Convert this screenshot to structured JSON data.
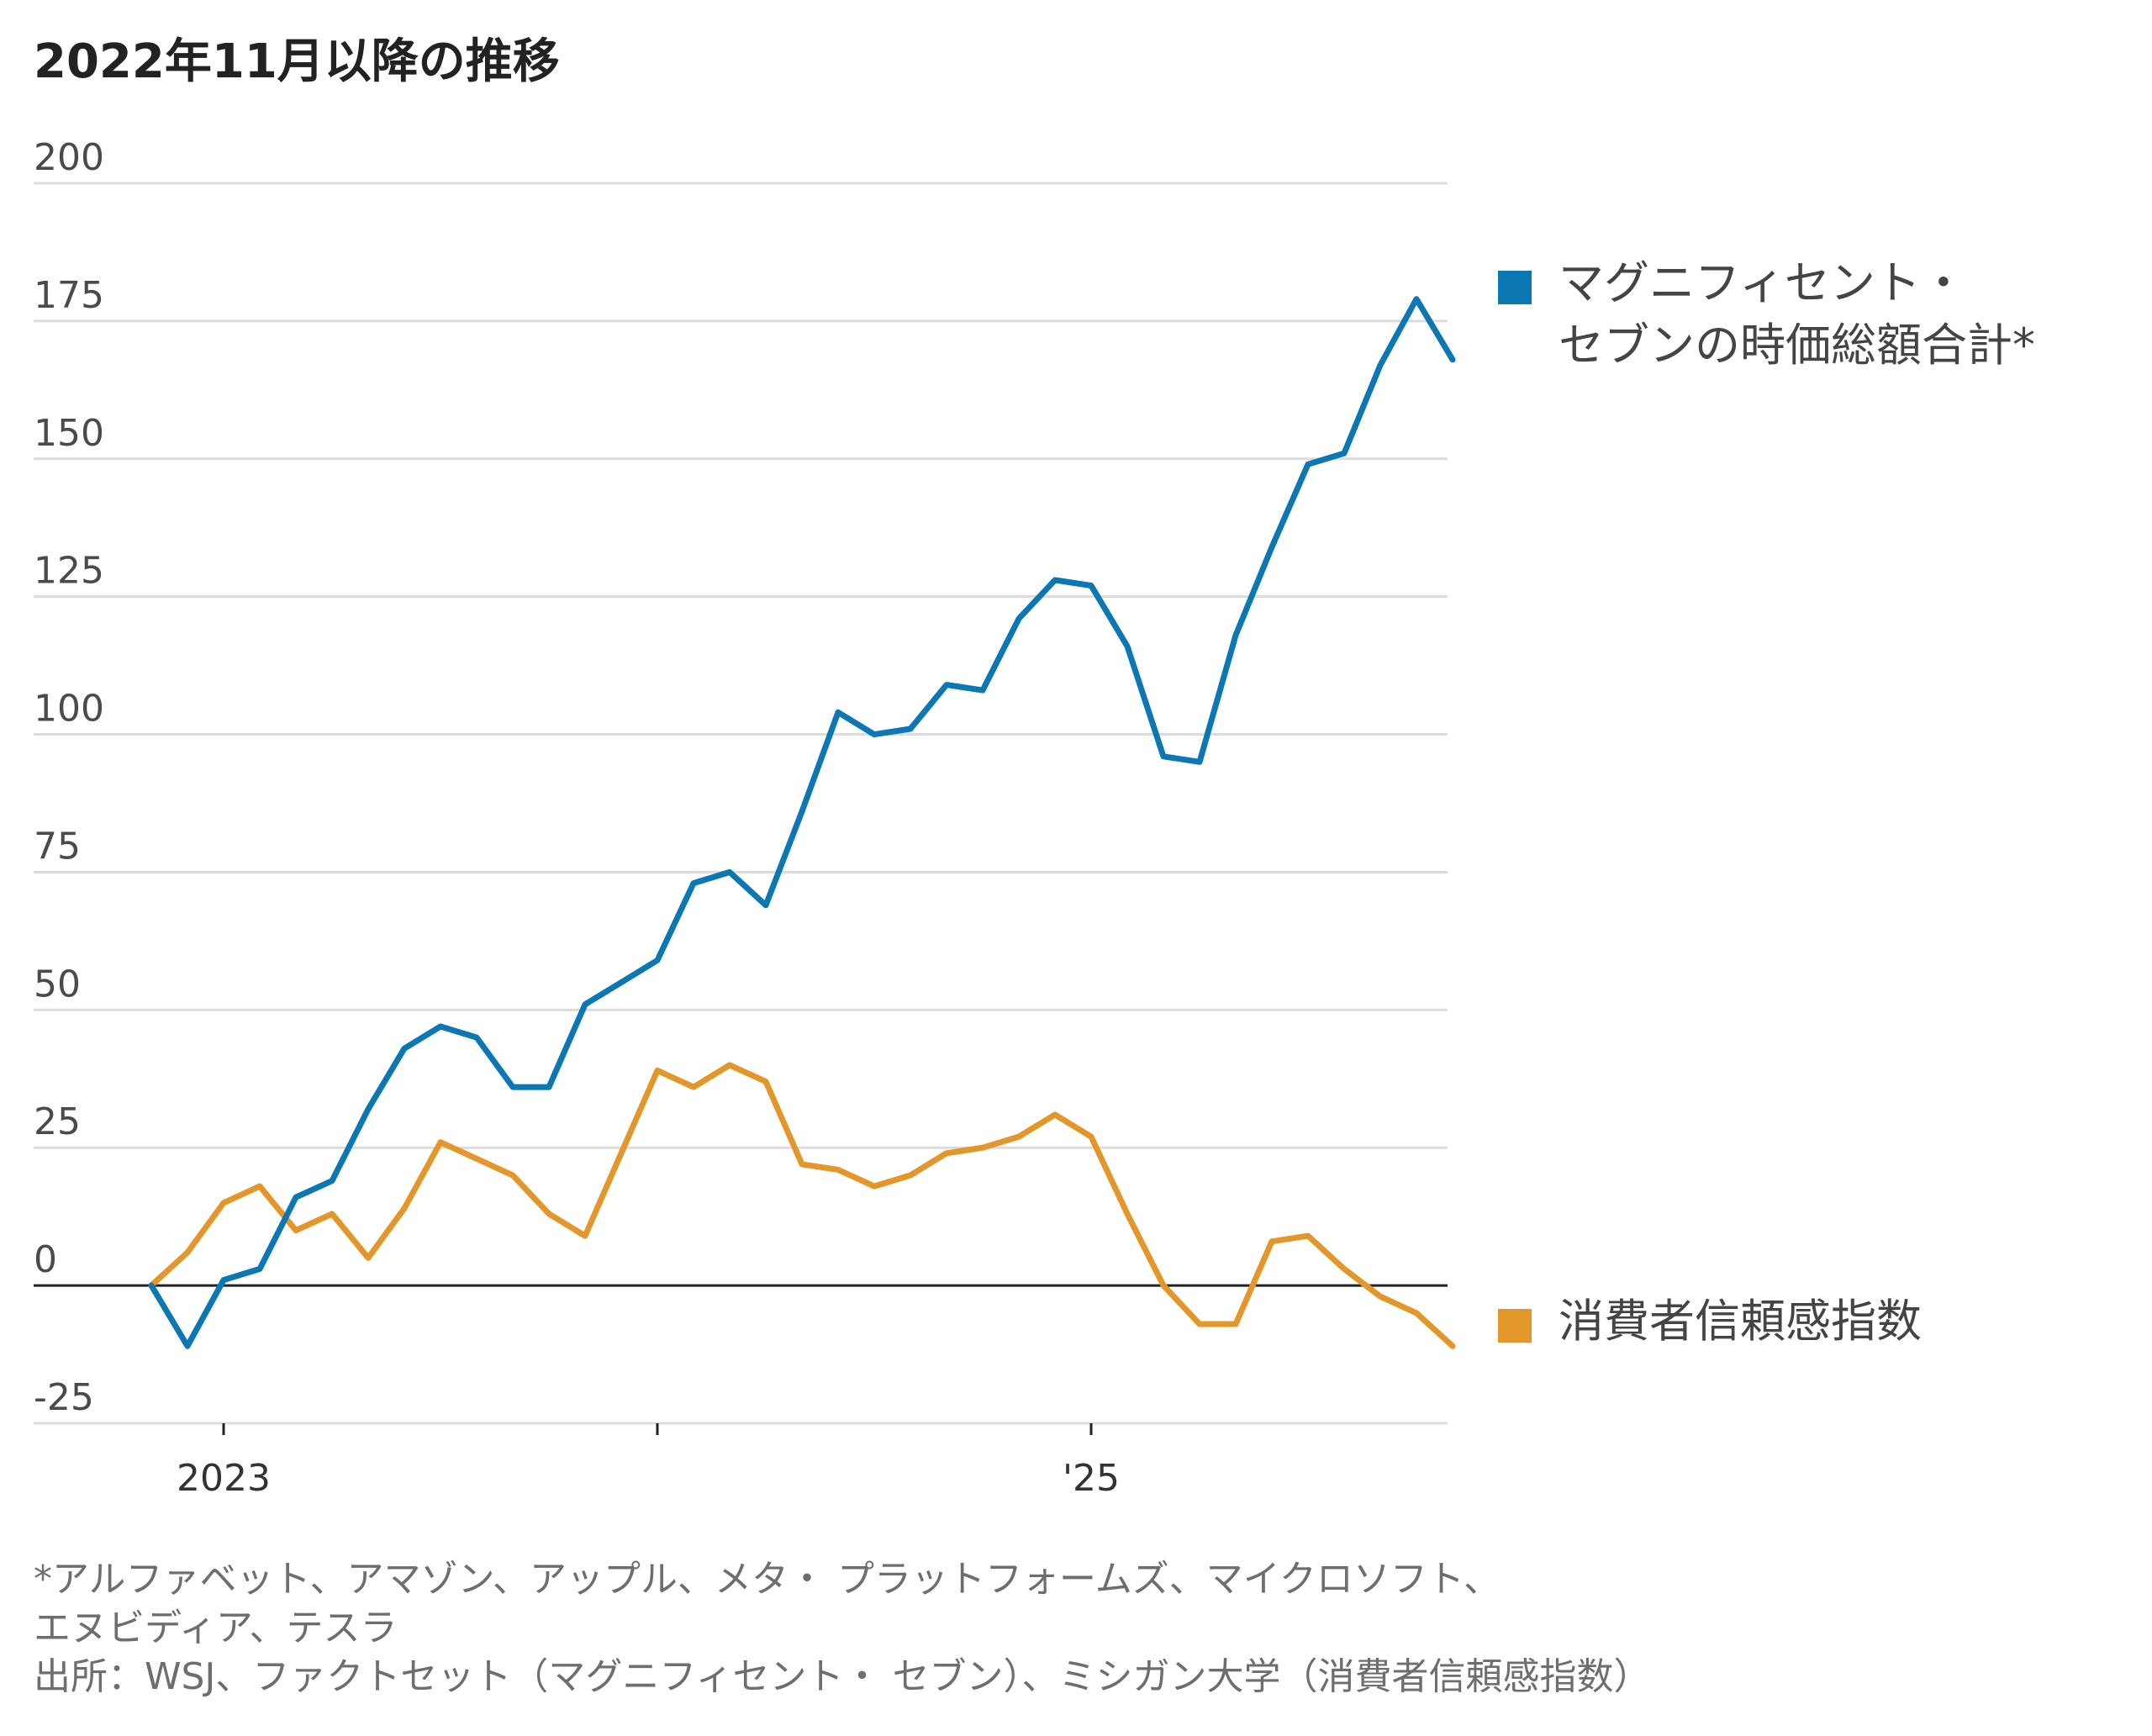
{
  "chart_data": {
    "type": "line",
    "title": "2022年11月以降の推移",
    "ylim": [
      -25,
      200
    ],
    "y_ticks": [
      "200",
      "175",
      "150",
      "125",
      "100",
      "75",
      "50",
      "25",
      "0",
      "-25"
    ],
    "y_tick_values": [
      200,
      175,
      150,
      125,
      100,
      75,
      50,
      25,
      0,
      -25
    ],
    "x_ticks": [
      {
        "label": "2023",
        "month_index": 2
      },
      {
        "label": "",
        "month_index": 14
      },
      {
        "label": "'25",
        "month_index": 26
      }
    ],
    "x_start": "2022-11",
    "grid": true,
    "legend_position": "right",
    "series": [
      {
        "name": "マグニフィセント・\nセブンの時価総額合計*",
        "color": "#0b77b3",
        "values": [
          0,
          -11,
          1,
          3,
          16,
          19,
          32,
          43,
          47,
          45,
          36,
          36,
          51,
          55,
          59,
          73,
          75,
          69,
          86,
          104,
          100,
          101,
          109,
          108,
          121,
          128,
          127,
          116,
          96,
          95,
          118,
          134,
          149,
          151,
          167,
          179,
          168
        ]
      },
      {
        "name": "消費者信頼感指数",
        "color": "#e3962a",
        "values": [
          0,
          6,
          15,
          18,
          10,
          13,
          5,
          14,
          26,
          23,
          20,
          13,
          9,
          24,
          39,
          36,
          40,
          37,
          22,
          21,
          18,
          20,
          24,
          25,
          27,
          31,
          27,
          13,
          0,
          -7,
          -7,
          8,
          9,
          3,
          -2,
          -5,
          -11
        ]
      }
    ]
  },
  "notes": [
    "*アルファベット、アマゾン、アップル、メタ・ プラットフォームズ、マイクロソフト、",
    "エヌビディア、テスラ",
    "出所：WSJ、ファクトセット（マグニフィセント・ セブン）、ミシガン大学（消費者信頼感指数）"
  ]
}
